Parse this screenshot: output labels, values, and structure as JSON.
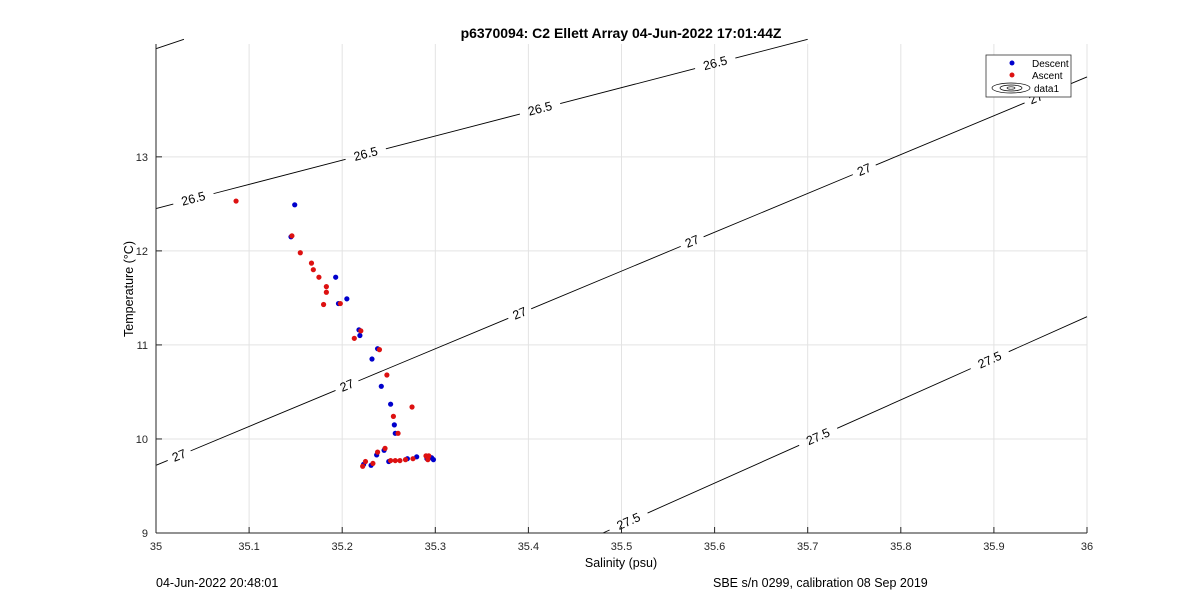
{
  "footer": {
    "left": "04-Jun-2022 20:48:01",
    "right": "SBE s/n 0299, calibration 08 Sep 2019"
  },
  "chart_data": {
    "type": "scatter",
    "title": "p6370094: C2 Ellett Array 04-Jun-2022 17:01:44Z",
    "xlabel": "Salinity (psu)",
    "ylabel": "Temperature (°C)",
    "xlim": [
      35,
      36
    ],
    "ylim": [
      9,
      14.2
    ],
    "xticks": [
      "35",
      "35.1",
      "35.2",
      "35.3",
      "35.4",
      "35.5",
      "35.6",
      "35.7",
      "35.8",
      "35.9",
      "36"
    ],
    "yticks": [
      "9",
      "10",
      "11",
      "12",
      "13"
    ],
    "grid": true,
    "legend_position": "top-right",
    "legend": [
      "Descent",
      "Ascent",
      "data1"
    ],
    "colors": {
      "descent": "#0000cc",
      "ascent": "#dd1111",
      "contour": "#000000",
      "grid": "#e3e3e3"
    },
    "contours": [
      {
        "level": "26.5",
        "points": [
          [
            35.0,
            14.15
          ],
          [
            35.03,
            14.25
          ]
        ],
        "labels": []
      },
      {
        "level": "26.5",
        "points": [
          [
            35.0,
            12.45
          ],
          [
            35.7,
            14.25
          ]
        ],
        "labels": [
          [
            35.04,
            12.56
          ],
          [
            35.225,
            13.04
          ],
          [
            35.412,
            13.53
          ],
          [
            35.6,
            14.02
          ]
        ]
      },
      {
        "level": "27",
        "points": [
          [
            35.0,
            9.72
          ],
          [
            36.0,
            13.85
          ]
        ],
        "labels": [
          [
            35.025,
            9.82
          ],
          [
            35.205,
            10.57
          ],
          [
            35.39,
            11.35
          ],
          [
            35.575,
            12.12
          ],
          [
            35.76,
            12.88
          ],
          [
            35.945,
            13.63
          ]
        ]
      },
      {
        "level": "27.5",
        "points": [
          [
            35.48,
            9.0
          ],
          [
            36.0,
            11.3
          ]
        ],
        "labels": [
          [
            35.505,
            9.18
          ],
          [
            35.71,
            10.05
          ],
          [
            35.895,
            10.85
          ]
        ]
      }
    ],
    "series": [
      {
        "name": "Descent",
        "points": [
          [
            35.149,
            12.49
          ],
          [
            35.145,
            12.15
          ],
          [
            35.193,
            11.72
          ],
          [
            35.205,
            11.49
          ],
          [
            35.196,
            11.44
          ],
          [
            35.219,
            11.1
          ],
          [
            35.218,
            11.16
          ],
          [
            35.238,
            10.96
          ],
          [
            35.232,
            10.85
          ],
          [
            35.242,
            10.56
          ],
          [
            35.252,
            10.37
          ],
          [
            35.256,
            10.15
          ],
          [
            35.257,
            10.06
          ],
          [
            35.245,
            9.88
          ],
          [
            35.237,
            9.83
          ],
          [
            35.231,
            9.72
          ],
          [
            35.223,
            9.73
          ],
          [
            35.25,
            9.76
          ],
          [
            35.27,
            9.79
          ],
          [
            35.28,
            9.81
          ],
          [
            35.291,
            9.79
          ],
          [
            35.296,
            9.8
          ],
          [
            35.298,
            9.78
          ]
        ]
      },
      {
        "name": "Ascent",
        "points": [
          [
            35.086,
            12.53
          ],
          [
            35.146,
            12.16
          ],
          [
            35.155,
            11.98
          ],
          [
            35.167,
            11.87
          ],
          [
            35.169,
            11.8
          ],
          [
            35.175,
            11.72
          ],
          [
            35.183,
            11.62
          ],
          [
            35.183,
            11.56
          ],
          [
            35.18,
            11.43
          ],
          [
            35.198,
            11.44
          ],
          [
            35.22,
            11.15
          ],
          [
            35.213,
            11.07
          ],
          [
            35.24,
            10.95
          ],
          [
            35.248,
            10.68
          ],
          [
            35.275,
            10.34
          ],
          [
            35.255,
            10.24
          ],
          [
            35.26,
            10.06
          ],
          [
            35.246,
            9.9
          ],
          [
            35.238,
            9.86
          ],
          [
            35.225,
            9.76
          ],
          [
            35.222,
            9.71
          ],
          [
            35.233,
            9.74
          ],
          [
            35.252,
            9.77
          ],
          [
            35.257,
            9.77
          ],
          [
            35.262,
            9.77
          ],
          [
            35.268,
            9.78
          ],
          [
            35.276,
            9.79
          ],
          [
            35.29,
            9.82
          ],
          [
            35.293,
            9.82
          ],
          [
            35.292,
            9.78
          ]
        ]
      }
    ]
  }
}
